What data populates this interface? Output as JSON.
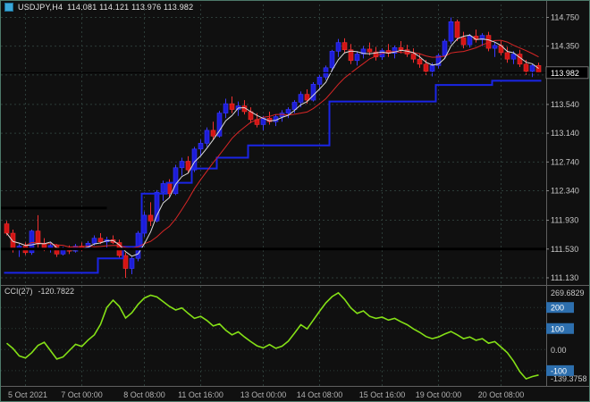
{
  "header": {
    "symbol": "USDJPY,H4",
    "quote_line": "114.081 114.121 113.976 113.982"
  },
  "indicator_label": {
    "name": "CCI(27)",
    "value": "-120.7822"
  },
  "theme": {
    "background": "#101010",
    "border": "#4e7a6a",
    "grid": "#2c3c38",
    "bull": "#1d1dd8",
    "bull_edge": "#3a3aff",
    "bear": "#d41414",
    "bear_edge": "#f03030",
    "ma_fast": "#dcdcdc",
    "ma_slow": "#d92626",
    "step_line": "#1a25e6",
    "cci_line": "#84e016",
    "axis_text": "#c8c8c8",
    "time_text": "#b2b2b2",
    "level_box": "#2d6fae",
    "price_box_bg": "#000000",
    "price_box_border": "#8a8a8a",
    "black_line": "#000000",
    "separator": "#5f5f5f"
  },
  "chart_data": {
    "type": "candlestick",
    "title": "USDJPY,H4",
    "price_axis": {
      "range": [
        111.08,
        114.88
      ],
      "grid_values": [
        114.75,
        114.35,
        113.95,
        113.54,
        113.14,
        112.74,
        112.34,
        111.93,
        111.53,
        111.13
      ],
      "labels": [
        {
          "text": "114.750",
          "value": 114.75
        },
        {
          "text": "114.350",
          "value": 114.35
        },
        {
          "text": "113.540",
          "value": 113.54
        },
        {
          "text": "113.140",
          "value": 113.14
        },
        {
          "text": "112.740",
          "value": 112.74
        },
        {
          "text": "112.340",
          "value": 112.34
        },
        {
          "text": "111.930",
          "value": 111.93
        },
        {
          "text": "111.530",
          "value": 111.53
        },
        {
          "text": "111.130",
          "value": 111.13
        }
      ],
      "current": {
        "text": "113.982",
        "value": 113.982
      }
    },
    "time_axis": {
      "ticks": [
        {
          "text": "5 Oct 2021",
          "index": 3
        },
        {
          "text": "7 Oct 00:00",
          "index": 12
        },
        {
          "text": "8 Oct 08:00",
          "index": 22
        },
        {
          "text": "11 Oct 16:00",
          "index": 31
        },
        {
          "text": "13 Oct 00:00",
          "index": 41
        },
        {
          "text": "14 Oct 08:00",
          "index": 50
        },
        {
          "text": "15 Oct 16:00",
          "index": 60
        },
        {
          "text": "19 Oct 00:00",
          "index": 69
        },
        {
          "text": "20 Oct 08:00",
          "index": 79
        }
      ]
    },
    "candles": [
      [
        111.88,
        111.92,
        111.72,
        111.75
      ],
      [
        111.75,
        111.8,
        111.48,
        111.52
      ],
      [
        111.52,
        111.6,
        111.42,
        111.57
      ],
      [
        111.57,
        111.62,
        111.45,
        111.48
      ],
      [
        111.48,
        111.8,
        111.45,
        111.78
      ],
      [
        111.78,
        112.0,
        111.55,
        111.6
      ],
      [
        111.6,
        111.68,
        111.5,
        111.55
      ],
      [
        111.55,
        111.62,
        111.48,
        111.58
      ],
      [
        111.58,
        111.6,
        111.42,
        111.46
      ],
      [
        111.46,
        111.56,
        111.44,
        111.53
      ],
      [
        111.53,
        111.58,
        111.46,
        111.5
      ],
      [
        111.5,
        111.6,
        111.48,
        111.57
      ],
      [
        111.57,
        111.62,
        111.5,
        111.54
      ],
      [
        111.54,
        111.64,
        111.52,
        111.61
      ],
      [
        111.61,
        111.72,
        111.58,
        111.68
      ],
      [
        111.68,
        111.75,
        111.6,
        111.63
      ],
      [
        111.63,
        111.7,
        111.55,
        111.66
      ],
      [
        111.66,
        111.72,
        111.6,
        111.62
      ],
      [
        111.62,
        111.66,
        111.4,
        111.44
      ],
      [
        111.44,
        111.48,
        111.13,
        111.26
      ],
      [
        111.26,
        111.42,
        111.18,
        111.4
      ],
      [
        111.4,
        111.78,
        111.36,
        111.75
      ],
      [
        111.75,
        112.05,
        111.7,
        112.0
      ],
      [
        112.0,
        112.18,
        111.85,
        111.92
      ],
      [
        111.92,
        112.35,
        111.9,
        112.32
      ],
      [
        112.32,
        112.48,
        112.2,
        112.44
      ],
      [
        112.44,
        112.5,
        112.25,
        112.3
      ],
      [
        112.3,
        112.7,
        112.28,
        112.66
      ],
      [
        112.66,
        112.8,
        112.55,
        112.75
      ],
      [
        112.75,
        112.82,
        112.58,
        112.63
      ],
      [
        112.63,
        112.95,
        112.6,
        112.92
      ],
      [
        112.92,
        113.05,
        112.82,
        113.0
      ],
      [
        113.0,
        113.22,
        112.95,
        113.18
      ],
      [
        113.18,
        113.3,
        113.05,
        113.1
      ],
      [
        113.1,
        113.45,
        113.08,
        113.42
      ],
      [
        113.42,
        113.62,
        113.35,
        113.55
      ],
      [
        113.55,
        113.65,
        113.42,
        113.47
      ],
      [
        113.47,
        113.58,
        113.38,
        113.52
      ],
      [
        113.52,
        113.6,
        113.4,
        113.44
      ],
      [
        113.44,
        113.5,
        113.28,
        113.33
      ],
      [
        113.33,
        113.42,
        113.22,
        113.26
      ],
      [
        113.26,
        113.38,
        113.18,
        113.35
      ],
      [
        113.35,
        113.44,
        113.26,
        113.3
      ],
      [
        113.3,
        113.4,
        113.24,
        113.37
      ],
      [
        113.37,
        113.46,
        113.3,
        113.42
      ],
      [
        113.42,
        113.5,
        113.35,
        113.47
      ],
      [
        113.47,
        113.6,
        113.42,
        113.57
      ],
      [
        113.57,
        113.72,
        113.5,
        113.68
      ],
      [
        113.68,
        113.75,
        113.55,
        113.6
      ],
      [
        113.6,
        113.85,
        113.58,
        113.82
      ],
      [
        113.82,
        113.95,
        113.75,
        113.92
      ],
      [
        113.92,
        114.08,
        113.88,
        114.05
      ],
      [
        114.05,
        114.3,
        114.0,
        114.28
      ],
      [
        114.28,
        114.45,
        114.2,
        114.4
      ],
      [
        114.4,
        114.46,
        114.25,
        114.3
      ],
      [
        114.3,
        114.38,
        114.1,
        114.15
      ],
      [
        114.15,
        114.28,
        114.08,
        114.24
      ],
      [
        114.24,
        114.35,
        114.18,
        114.31
      ],
      [
        114.31,
        114.4,
        114.22,
        114.27
      ],
      [
        114.27,
        114.34,
        114.15,
        114.2
      ],
      [
        114.2,
        114.32,
        114.16,
        114.29
      ],
      [
        114.29,
        114.38,
        114.2,
        114.25
      ],
      [
        114.25,
        114.36,
        114.18,
        114.33
      ],
      [
        114.33,
        114.42,
        114.25,
        114.3
      ],
      [
        114.3,
        114.37,
        114.2,
        114.24
      ],
      [
        114.24,
        114.32,
        114.12,
        114.17
      ],
      [
        114.17,
        114.25,
        114.05,
        114.1
      ],
      [
        114.1,
        114.16,
        113.95,
        114.0
      ],
      [
        114.0,
        114.12,
        113.93,
        114.08
      ],
      [
        114.08,
        114.25,
        114.04,
        114.22
      ],
      [
        114.22,
        114.45,
        114.18,
        114.42
      ],
      [
        114.42,
        114.75,
        114.38,
        114.69
      ],
      [
        114.69,
        114.72,
        114.42,
        114.47
      ],
      [
        114.47,
        114.55,
        114.32,
        114.37
      ],
      [
        114.37,
        114.52,
        114.33,
        114.49
      ],
      [
        114.49,
        114.58,
        114.4,
        114.44
      ],
      [
        114.44,
        114.53,
        114.35,
        114.5
      ],
      [
        114.5,
        114.55,
        114.28,
        114.32
      ],
      [
        114.32,
        114.4,
        114.2,
        114.36
      ],
      [
        114.36,
        114.42,
        114.22,
        114.26
      ],
      [
        114.26,
        114.34,
        114.12,
        114.17
      ],
      [
        114.17,
        114.28,
        114.1,
        114.24
      ],
      [
        114.24,
        114.3,
        114.06,
        114.1
      ],
      [
        114.1,
        114.16,
        113.95,
        114.0
      ],
      [
        114.0,
        114.1,
        113.92,
        114.08
      ],
      [
        114.081,
        114.121,
        113.976,
        113.982
      ]
    ],
    "overlays": {
      "ma_fast": {
        "type": "sma",
        "period": 4
      },
      "ma_slow": {
        "type": "sma",
        "period": 10
      },
      "step_line": {
        "points": [
          [
            0,
            111.2
          ],
          [
            15,
            111.4
          ],
          [
            19,
            111.56
          ],
          [
            22,
            112.3
          ],
          [
            26,
            112.45
          ],
          [
            30,
            112.65
          ],
          [
            34,
            112.8
          ],
          [
            39,
            112.97
          ],
          [
            52,
            113.58
          ],
          [
            69,
            113.81
          ],
          [
            78,
            113.87
          ]
        ]
      },
      "hlines": [
        {
          "price": 111.53,
          "from": 0,
          "to": 85
        },
        {
          "price": 112.1,
          "from": 0,
          "to": 16
        }
      ]
    },
    "cci": {
      "name": "CCI(27)",
      "current": -120.7822,
      "range": [
        -160,
        290
      ],
      "values": [
        30,
        5,
        -30,
        -40,
        -15,
        20,
        35,
        -5,
        -45,
        -35,
        -5,
        25,
        15,
        45,
        70,
        120,
        200,
        235,
        205,
        150,
        175,
        215,
        245,
        258,
        250,
        228,
        205,
        188,
        198,
        172,
        148,
        158,
        138,
        112,
        122,
        92,
        70,
        84,
        60,
        38,
        18,
        8,
        24,
        6,
        16,
        40,
        78,
        118,
        98,
        140,
        182,
        222,
        252,
        269.68,
        238,
        198,
        172,
        184,
        158,
        148,
        154,
        140,
        148,
        132,
        118,
        98,
        82,
        62,
        52,
        60,
        74,
        86,
        70,
        52,
        60,
        44,
        52,
        30,
        38,
        12,
        -15,
        -55,
        -105,
        -139.38,
        -128,
        -120.78
      ],
      "axis": {
        "max": {
          "text": "269.6829",
          "value": 269.6829
        },
        "min": {
          "text": "-139.3758",
          "value": -139.3758
        },
        "levels": [
          {
            "text": "200",
            "value": 200,
            "boxed": true
          },
          {
            "text": "100",
            "value": 100,
            "boxed": true
          },
          {
            "text": "0.00",
            "value": 0,
            "boxed": false
          },
          {
            "text": "-100",
            "value": -100,
            "boxed": true
          }
        ]
      }
    }
  }
}
